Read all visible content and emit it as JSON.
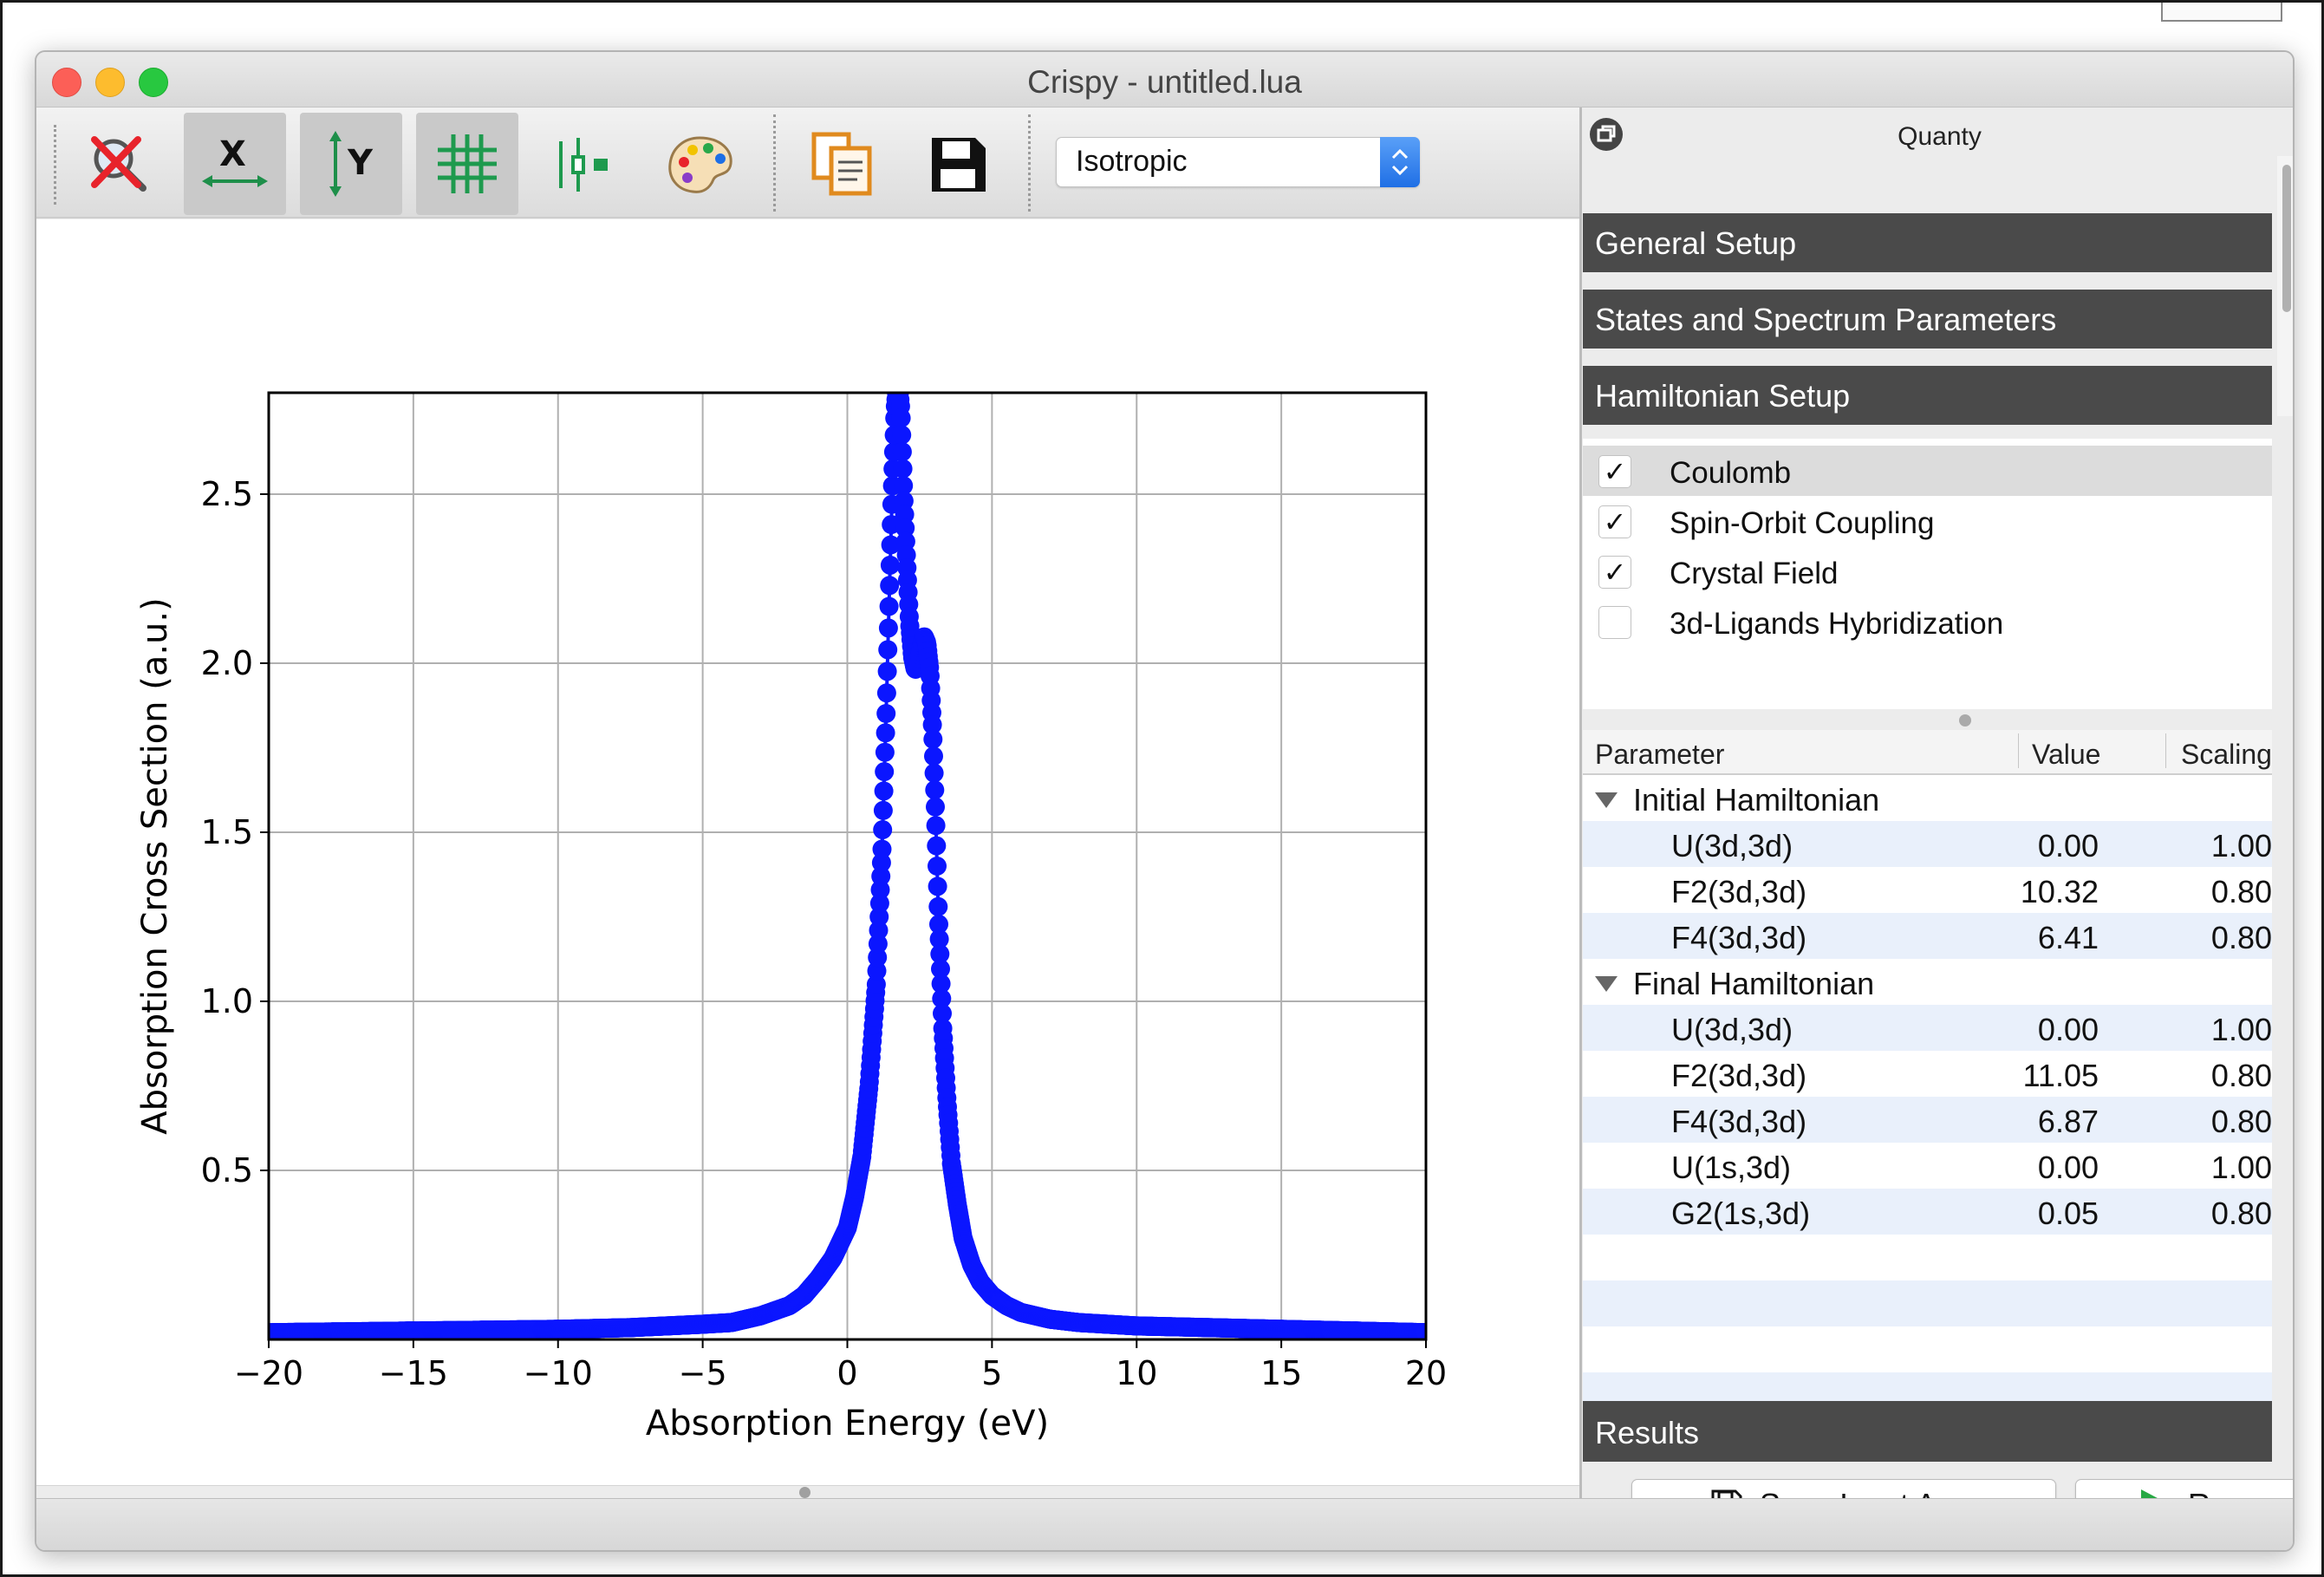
{
  "window": {
    "title": "Crispy - untitled.lua"
  },
  "toolbar": {
    "buttons": [
      {
        "icon": "zoom-reset-icon",
        "active": false
      },
      {
        "icon": "x-axis-scale-icon",
        "active": true
      },
      {
        "icon": "y-axis-scale-icon",
        "active": true
      },
      {
        "icon": "grid-icon",
        "active": true
      },
      {
        "icon": "axes-settings-icon",
        "active": false
      },
      {
        "icon": "palette-icon",
        "active": false
      },
      {
        "icon": "copy-clipboard-icon",
        "active": false
      },
      {
        "icon": "save-disk-icon",
        "active": false
      }
    ],
    "combo_value": "Isotropic"
  },
  "dock": {
    "title": "Quanty",
    "sections": {
      "general_setup": "General Setup",
      "states_and_spectrum": "States and Spectrum Parameters",
      "hamiltonian_setup": "Hamiltonian Setup",
      "results": "Results"
    },
    "checkboxes": [
      {
        "label": "Coulomb",
        "checked": true,
        "mark": "✓"
      },
      {
        "label": "Spin-Orbit Coupling",
        "checked": true,
        "mark": "✓"
      },
      {
        "label": "Crystal Field",
        "checked": true,
        "mark": "✓"
      },
      {
        "label": "3d-Ligands Hybridization",
        "checked": false,
        "mark": ""
      }
    ],
    "table": {
      "headers": {
        "parameter": "Parameter",
        "value": "Value",
        "scaling": "Scaling"
      },
      "groups": [
        {
          "name": "Initial Hamiltonian",
          "rows": [
            {
              "name": "U(3d,3d)",
              "value": "0.00",
              "scaling": "1.00"
            },
            {
              "name": "F2(3d,3d)",
              "value": "10.32",
              "scaling": "0.80"
            },
            {
              "name": "F4(3d,3d)",
              "value": "6.41",
              "scaling": "0.80"
            }
          ]
        },
        {
          "name": "Final Hamiltonian",
          "rows": [
            {
              "name": "U(3d,3d)",
              "value": "0.00",
              "scaling": "1.00"
            },
            {
              "name": "F2(3d,3d)",
              "value": "11.05",
              "scaling": "0.80"
            },
            {
              "name": "F4(3d,3d)",
              "value": "6.87",
              "scaling": "0.80"
            },
            {
              "name": "U(1s,3d)",
              "value": "0.00",
              "scaling": "1.00"
            },
            {
              "name": "G2(1s,3d)",
              "value": "0.05",
              "scaling": "0.80"
            }
          ]
        }
      ]
    },
    "buttons": {
      "save_input": "Save Input As...",
      "run": "Run"
    }
  },
  "colors": {
    "series": "#0b16ff",
    "section_bar": "#4a4a4a",
    "run_icon": "#27a844",
    "combo_accent": "#1f6fe5"
  },
  "chart_data": {
    "type": "scatter",
    "xlabel": "Absorption Energy (eV)",
    "ylabel": "Absorption Cross Section (a.u.)",
    "xlim": [
      -20,
      20
    ],
    "ylim": [
      0,
      2.8
    ],
    "xticks": [
      -20,
      -15,
      -10,
      -5,
      0,
      5,
      10,
      15,
      20
    ],
    "xtick_labels": [
      "−20",
      "−15",
      "−10",
      "−5",
      "0",
      "5",
      "10",
      "15",
      "20"
    ],
    "yticks": [
      0.5,
      1.0,
      1.5,
      2.0,
      2.5
    ],
    "ytick_labels": [
      "0.5",
      "1.0",
      "1.5",
      "2.0",
      "2.5"
    ],
    "grid": true,
    "series": [
      {
        "style": "line-with-markers",
        "x": [
          -20,
          -15,
          -10,
          -7.5,
          -5,
          -4,
          -3,
          -2,
          -1.5,
          -1,
          -0.5,
          0,
          0.25,
          0.5,
          0.75,
          1.0,
          1.2,
          1.35,
          1.45,
          1.55,
          1.65,
          1.75,
          1.85,
          1.95,
          2.05,
          2.15,
          2.25,
          2.35,
          2.45,
          2.55,
          2.65,
          2.75,
          2.85,
          2.95,
          3.05,
          3.15,
          3.3,
          3.45,
          3.6,
          3.8,
          4.0,
          4.3,
          4.6,
          5.0,
          5.5,
          6.0,
          7.0,
          8.0,
          10.0,
          12.5,
          15.0,
          20.0
        ],
        "y": [
          0.02,
          0.025,
          0.03,
          0.035,
          0.045,
          0.05,
          0.07,
          0.1,
          0.13,
          0.18,
          0.24,
          0.33,
          0.42,
          0.54,
          0.75,
          1.05,
          1.45,
          1.88,
          2.2,
          2.5,
          2.75,
          2.85,
          2.75,
          2.5,
          2.3,
          2.12,
          2.02,
          1.98,
          2.0,
          2.05,
          2.08,
          2.06,
          1.98,
          1.8,
          1.55,
          1.25,
          0.92,
          0.7,
          0.52,
          0.4,
          0.3,
          0.22,
          0.17,
          0.13,
          0.1,
          0.08,
          0.06,
          0.05,
          0.04,
          0.035,
          0.03,
          0.02
        ]
      }
    ]
  }
}
